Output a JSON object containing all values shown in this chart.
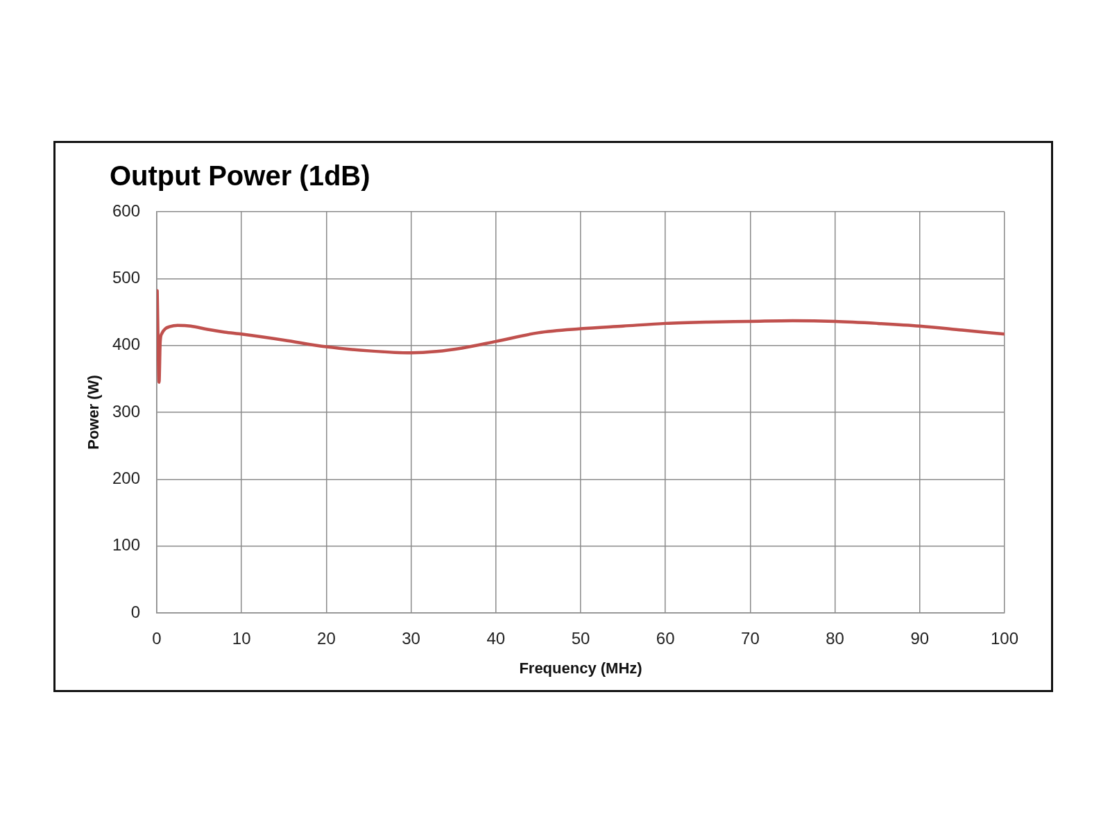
{
  "chart_data": {
    "type": "line",
    "title": "Output Power (1dB)",
    "xlabel": "Frequency (MHz)",
    "ylabel": "Power (W)",
    "x": [
      0.05,
      0.27,
      0.4,
      0.6,
      1,
      1.5,
      2.5,
      4,
      6,
      8,
      10,
      15,
      20,
      25,
      30,
      33,
      36,
      40,
      45,
      50,
      55,
      60,
      65,
      70,
      75,
      80,
      85,
      90,
      95,
      100
    ],
    "values": [
      482,
      345,
      405,
      418,
      425,
      428,
      430,
      429,
      424,
      420,
      417,
      408,
      398,
      392,
      389,
      391,
      396,
      406,
      419,
      425,
      429,
      433,
      435,
      436,
      437,
      436,
      433,
      429,
      423,
      417
    ],
    "color": "#c0504d",
    "xlim": [
      0,
      100
    ],
    "xticks": [
      0,
      10,
      20,
      30,
      40,
      50,
      60,
      70,
      80,
      90,
      100
    ],
    "ylim": [
      0,
      600
    ],
    "yticks": [
      0,
      100,
      200,
      300,
      400,
      500,
      600
    ],
    "grid": true
  }
}
